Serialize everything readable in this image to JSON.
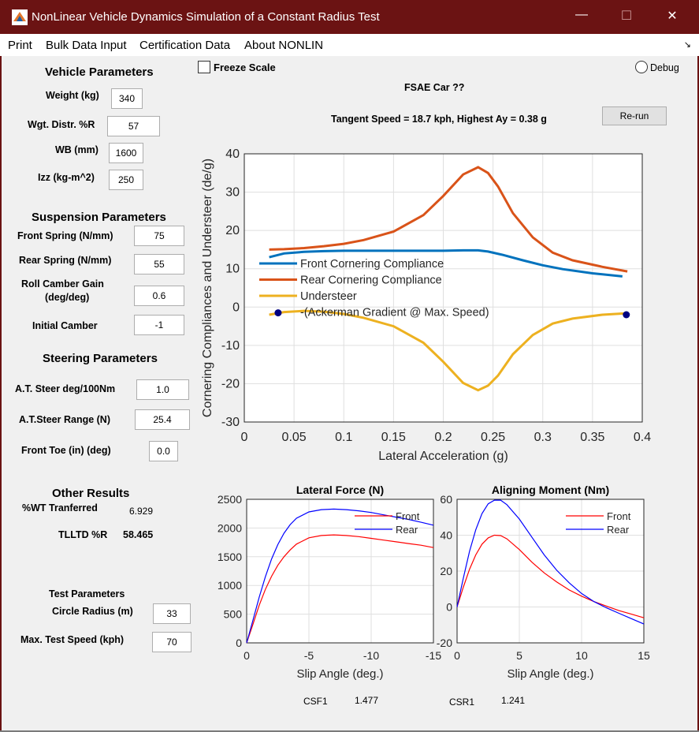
{
  "window": {
    "title": "NonLinear Vehicle Dynamics Simulation of a Constant Radius Test",
    "minimize": "—",
    "maximize": "☐",
    "close": "✕",
    "app_icon": "matlab-icon"
  },
  "menu": {
    "items": [
      "Print",
      "Bulk Data Input",
      "Certification Data",
      "About NONLIN"
    ],
    "corner": "↘"
  },
  "vehicle": {
    "header": "Vehicle Parameters",
    "weight": {
      "label": "Weight (kg)",
      "value": "340"
    },
    "wgt_dist": {
      "label": "Wgt. Distr. %R",
      "value": "57"
    },
    "wb": {
      "label": "WB (mm)",
      "value": "1600"
    },
    "izz": {
      "label": "Izz (kg-m^2)",
      "value": "250"
    }
  },
  "suspension": {
    "header": "Suspension Parameters",
    "front_spring": {
      "label": "Front Spring (N/mm)",
      "value": "75"
    },
    "rear_spring": {
      "label": "Rear Spring (N/mm)",
      "value": "55"
    },
    "roll_camber": {
      "label1": "Roll Camber Gain",
      "label2": "(deg/deg)",
      "value": "0.6"
    },
    "initial_camber": {
      "label": "Initial Camber",
      "value": "-1"
    }
  },
  "steering": {
    "header": "Steering Parameters",
    "at_steer": {
      "label": "A.T. Steer deg/100Nm",
      "value": "1.0"
    },
    "at_range": {
      "label": "A.T.Steer Range (N)",
      "value": "25.4"
    },
    "front_toe": {
      "label": "Front Toe (in) (deg)",
      "value": "0.0"
    }
  },
  "other": {
    "header": "Other Results",
    "wt_transferred": {
      "label": "%WT Tranferred",
      "value": "6.929"
    },
    "tlltd": {
      "label": "TLLTD %R",
      "value": "58.465"
    }
  },
  "test": {
    "header": "Test Parameters",
    "circle_radius": {
      "label": "Circle Radius (m)",
      "value": "33"
    },
    "max_speed": {
      "label": "Max. Test Speed (kph)",
      "value": "70"
    }
  },
  "controls": {
    "freeze_scale": "Freeze Scale",
    "debug": "Debug",
    "rerun": "Re-run",
    "car_title": "FSAE Car ??",
    "summary": "Tangent Speed = 18.7 kph,  Highest Ay = 0.38 g"
  },
  "results": {
    "csf1_label": "CSF1",
    "csf1_value": "1.477",
    "csr1_label": "CSR1",
    "csr1_value": "1.241"
  },
  "chart_data": [
    {
      "type": "line",
      "xlabel": "Lateral Acceleration (g)",
      "ylabel": "Cornering Compliances and Understeer (de/g)",
      "xlim": [
        0,
        0.4
      ],
      "ylim": [
        -30,
        40
      ],
      "xticks": [
        "0",
        "0.05",
        "0.1",
        "0.15",
        "0.2",
        "0.25",
        "0.3",
        "0.35",
        "0.4"
      ],
      "yticks": [
        "40",
        "30",
        "20",
        "10",
        "0",
        "-10",
        "-20",
        "-30"
      ],
      "grid": true,
      "legend_position": "left-middle",
      "series": [
        {
          "name": "Front Cornering Compliance",
          "color": "#0072bd",
          "x": [
            0.025,
            0.04,
            0.06,
            0.08,
            0.1,
            0.12,
            0.15,
            0.18,
            0.2,
            0.22,
            0.235,
            0.245,
            0.26,
            0.28,
            0.3,
            0.32,
            0.35,
            0.38
          ],
          "y": [
            13,
            14,
            14.4,
            14.6,
            14.7,
            14.7,
            14.7,
            14.7,
            14.7,
            14.8,
            14.8,
            14.5,
            13.6,
            12.2,
            10.9,
            9.9,
            8.8,
            8
          ]
        },
        {
          "name": "Rear Cornering Compliance",
          "color": "#d95319",
          "x": [
            0.025,
            0.04,
            0.06,
            0.08,
            0.1,
            0.12,
            0.15,
            0.18,
            0.2,
            0.22,
            0.235,
            0.245,
            0.255,
            0.27,
            0.29,
            0.31,
            0.33,
            0.36,
            0.385
          ],
          "y": [
            15,
            15.1,
            15.4,
            15.9,
            16.5,
            17.5,
            19.7,
            24,
            29,
            34.6,
            36.5,
            35,
            31.5,
            24.5,
            18.2,
            14.2,
            12.2,
            10.5,
            9.3
          ]
        },
        {
          "name": "Understeer",
          "color": "#edb120",
          "x": [
            0.025,
            0.04,
            0.06,
            0.08,
            0.1,
            0.12,
            0.15,
            0.18,
            0.2,
            0.22,
            0.235,
            0.245,
            0.255,
            0.27,
            0.29,
            0.31,
            0.33,
            0.36,
            0.385
          ],
          "y": [
            -2,
            -1.3,
            -1,
            -1.2,
            -1.8,
            -2.8,
            -5,
            -9.3,
            -14.3,
            -19.8,
            -21.7,
            -20.5,
            -17.9,
            -12.3,
            -7.3,
            -4.3,
            -3,
            -2,
            -1.6
          ]
        },
        {
          "name": "-(Ackerman Gradient @ Max. Speed)",
          "color": "#000080",
          "marker": "dot",
          "x": [
            0.034,
            0.384
          ],
          "y": [
            -1.5,
            -2
          ]
        }
      ]
    },
    {
      "type": "line",
      "title": "Lateral Force (N)",
      "xlabel": "Slip Angle (deg.)",
      "xlim": [
        0,
        -15
      ],
      "ylim": [
        0,
        2500
      ],
      "xticks": [
        "0",
        "-5",
        "-10",
        "-15"
      ],
      "yticks": [
        "2500",
        "2000",
        "1500",
        "1000",
        "500",
        "0"
      ],
      "grid": true,
      "legend_position": "top-right",
      "series": [
        {
          "name": "Front",
          "color": "#ff0000",
          "x": [
            0,
            -0.5,
            -1,
            -1.5,
            -2,
            -2.5,
            -3,
            -3.5,
            -4,
            -5,
            -6,
            -7,
            -8,
            -9,
            -10,
            -11,
            -12,
            -13,
            -14,
            -15
          ],
          "y": [
            0,
            320,
            650,
            930,
            1160,
            1350,
            1500,
            1620,
            1720,
            1830,
            1870,
            1880,
            1870,
            1850,
            1820,
            1790,
            1760,
            1730,
            1700,
            1660
          ]
        },
        {
          "name": "Rear",
          "color": "#0000ff",
          "x": [
            0,
            -0.5,
            -1,
            -1.5,
            -2,
            -2.5,
            -3,
            -3.5,
            -4,
            -5,
            -6,
            -7,
            -8,
            -9,
            -10,
            -11,
            -12,
            -13,
            -14,
            -15
          ],
          "y": [
            0,
            390,
            790,
            1150,
            1460,
            1710,
            1910,
            2060,
            2170,
            2280,
            2320,
            2330,
            2320,
            2300,
            2270,
            2230,
            2190,
            2150,
            2100,
            2050
          ]
        }
      ]
    },
    {
      "type": "line",
      "title": "Aligning Moment (Nm)",
      "xlabel": "Slip Angle (deg.)",
      "xlim": [
        0,
        15
      ],
      "ylim": [
        -20,
        60
      ],
      "xticks": [
        "0",
        "5",
        "10",
        "15"
      ],
      "yticks": [
        "60",
        "40",
        "20",
        "0",
        "-20"
      ],
      "grid": true,
      "legend_position": "top-right",
      "series": [
        {
          "name": "Front",
          "color": "#ff0000",
          "x": [
            0,
            0.5,
            1,
            1.5,
            2,
            2.5,
            3,
            3.5,
            4,
            5,
            6,
            7,
            8,
            9,
            10,
            11,
            12,
            13,
            14,
            15
          ],
          "y": [
            0,
            11,
            21,
            29,
            35,
            38.5,
            40,
            39.8,
            38,
            32,
            25,
            19,
            14,
            9.5,
            6,
            3,
            0.5,
            -2,
            -4,
            -6
          ]
        },
        {
          "name": "Rear",
          "color": "#0000ff",
          "x": [
            0,
            0.5,
            1,
            1.5,
            2,
            2.5,
            3,
            3.5,
            4,
            5,
            6,
            7,
            8,
            9,
            10,
            11,
            12,
            13,
            14,
            15
          ],
          "y": [
            0,
            16,
            31,
            43,
            52,
            57.5,
            59.5,
            59.5,
            57,
            49,
            39,
            29,
            20.5,
            13.5,
            7.5,
            3,
            -0.5,
            -3.5,
            -6.5,
            -9.5
          ]
        }
      ]
    }
  ]
}
